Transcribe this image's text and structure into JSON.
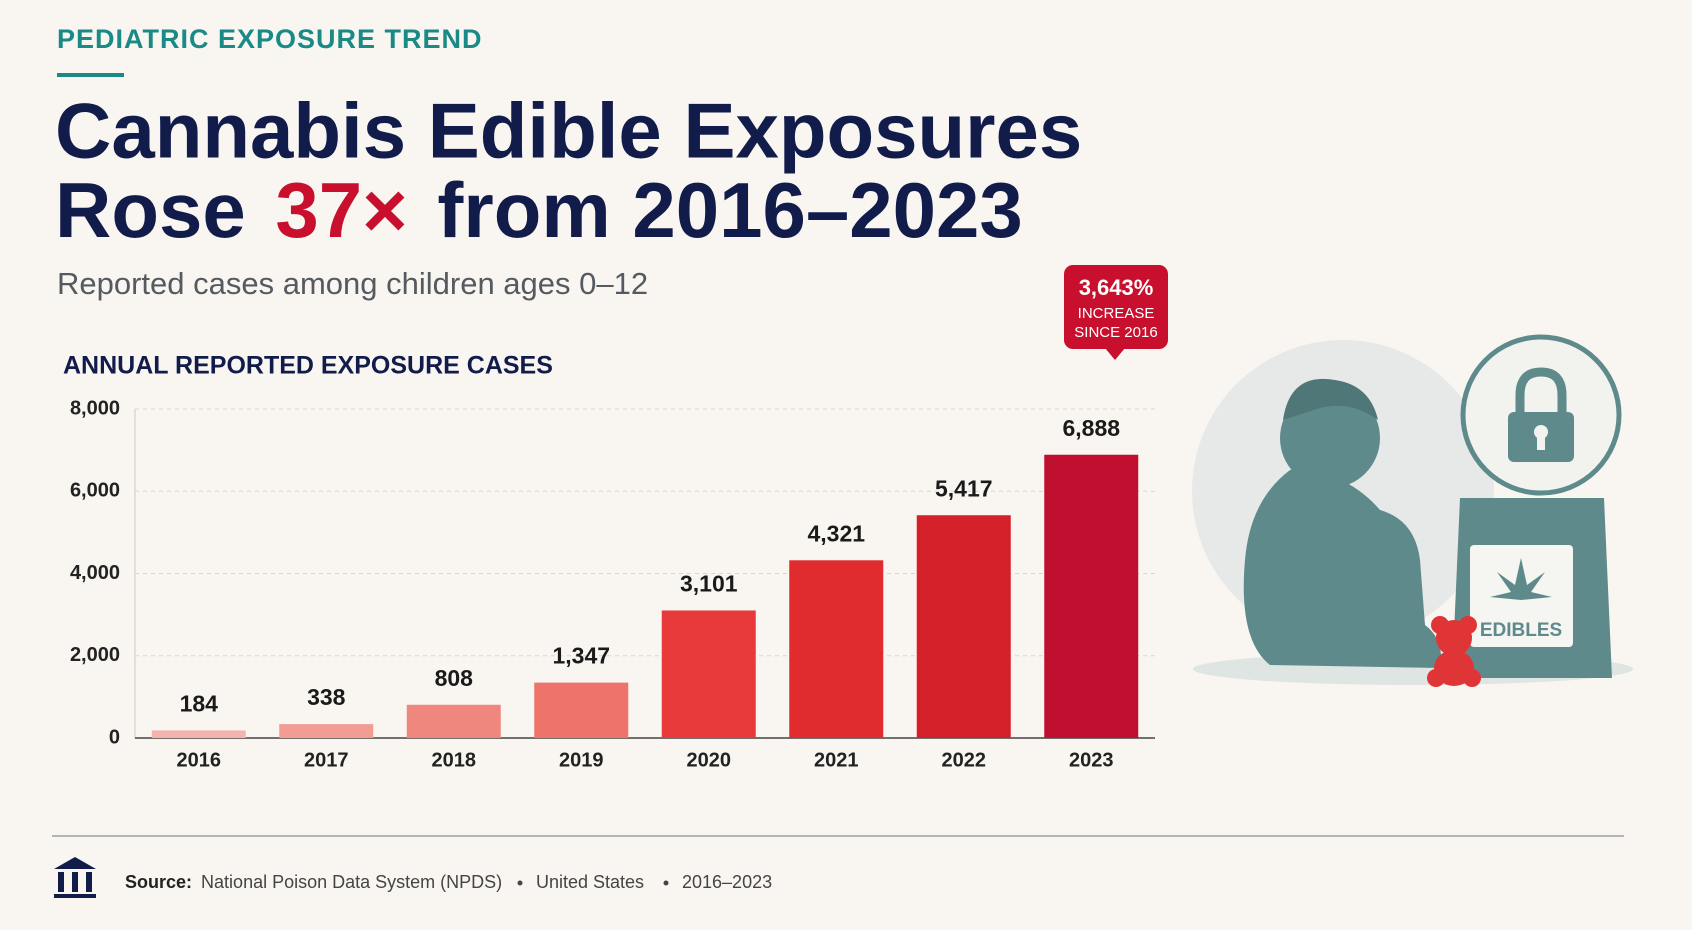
{
  "header": {
    "eyebrow": "PEDIATRIC EXPOSURE TREND",
    "title": [
      "Cannabis Edible Exposures",
      "Rose",
      "37×",
      "from 2016–2023"
    ],
    "subtitle": "Reported cases among children ages 0–12"
  },
  "chart_data": {
    "type": "bar",
    "title": "ANNUAL REPORTED EXPOSURE CASES",
    "categories": [
      "2016",
      "2017",
      "2018",
      "2019",
      "2020",
      "2021",
      "2022",
      "2023"
    ],
    "values": [
      184,
      338,
      808,
      1347,
      3101,
      4321,
      5417,
      6888
    ],
    "value_labels": [
      "184",
      "338",
      "808",
      "1,347",
      "3,101",
      "4,321",
      "5,417",
      "6,888"
    ],
    "colors": [
      "#f5b3ad",
      "#f39c94",
      "#f0877e",
      "#ee736b",
      "#e8393b",
      "#e02b2f",
      "#d42129",
      "#c1102f"
    ],
    "ylim": [
      0,
      8000
    ],
    "yticks": [
      0,
      {
        "value": 2000,
        "label": "2,000"
      },
      {
        "value": 4000,
        "label": "4,000"
      },
      {
        "value": 6000,
        "label": "6,000"
      },
      {
        "value": 8000,
        "label": "8,000"
      }
    ],
    "grid": true
  },
  "callout": {
    "value": "3,643%",
    "lines": [
      "INCREASE",
      "SINCE 2016"
    ]
  },
  "illustration": {
    "bag_label": "EDIBLES"
  },
  "footer": {
    "source_label": "Source:",
    "items": [
      "National Poison Data System (NPDS)",
      "United States",
      "2016–2023"
    ]
  }
}
